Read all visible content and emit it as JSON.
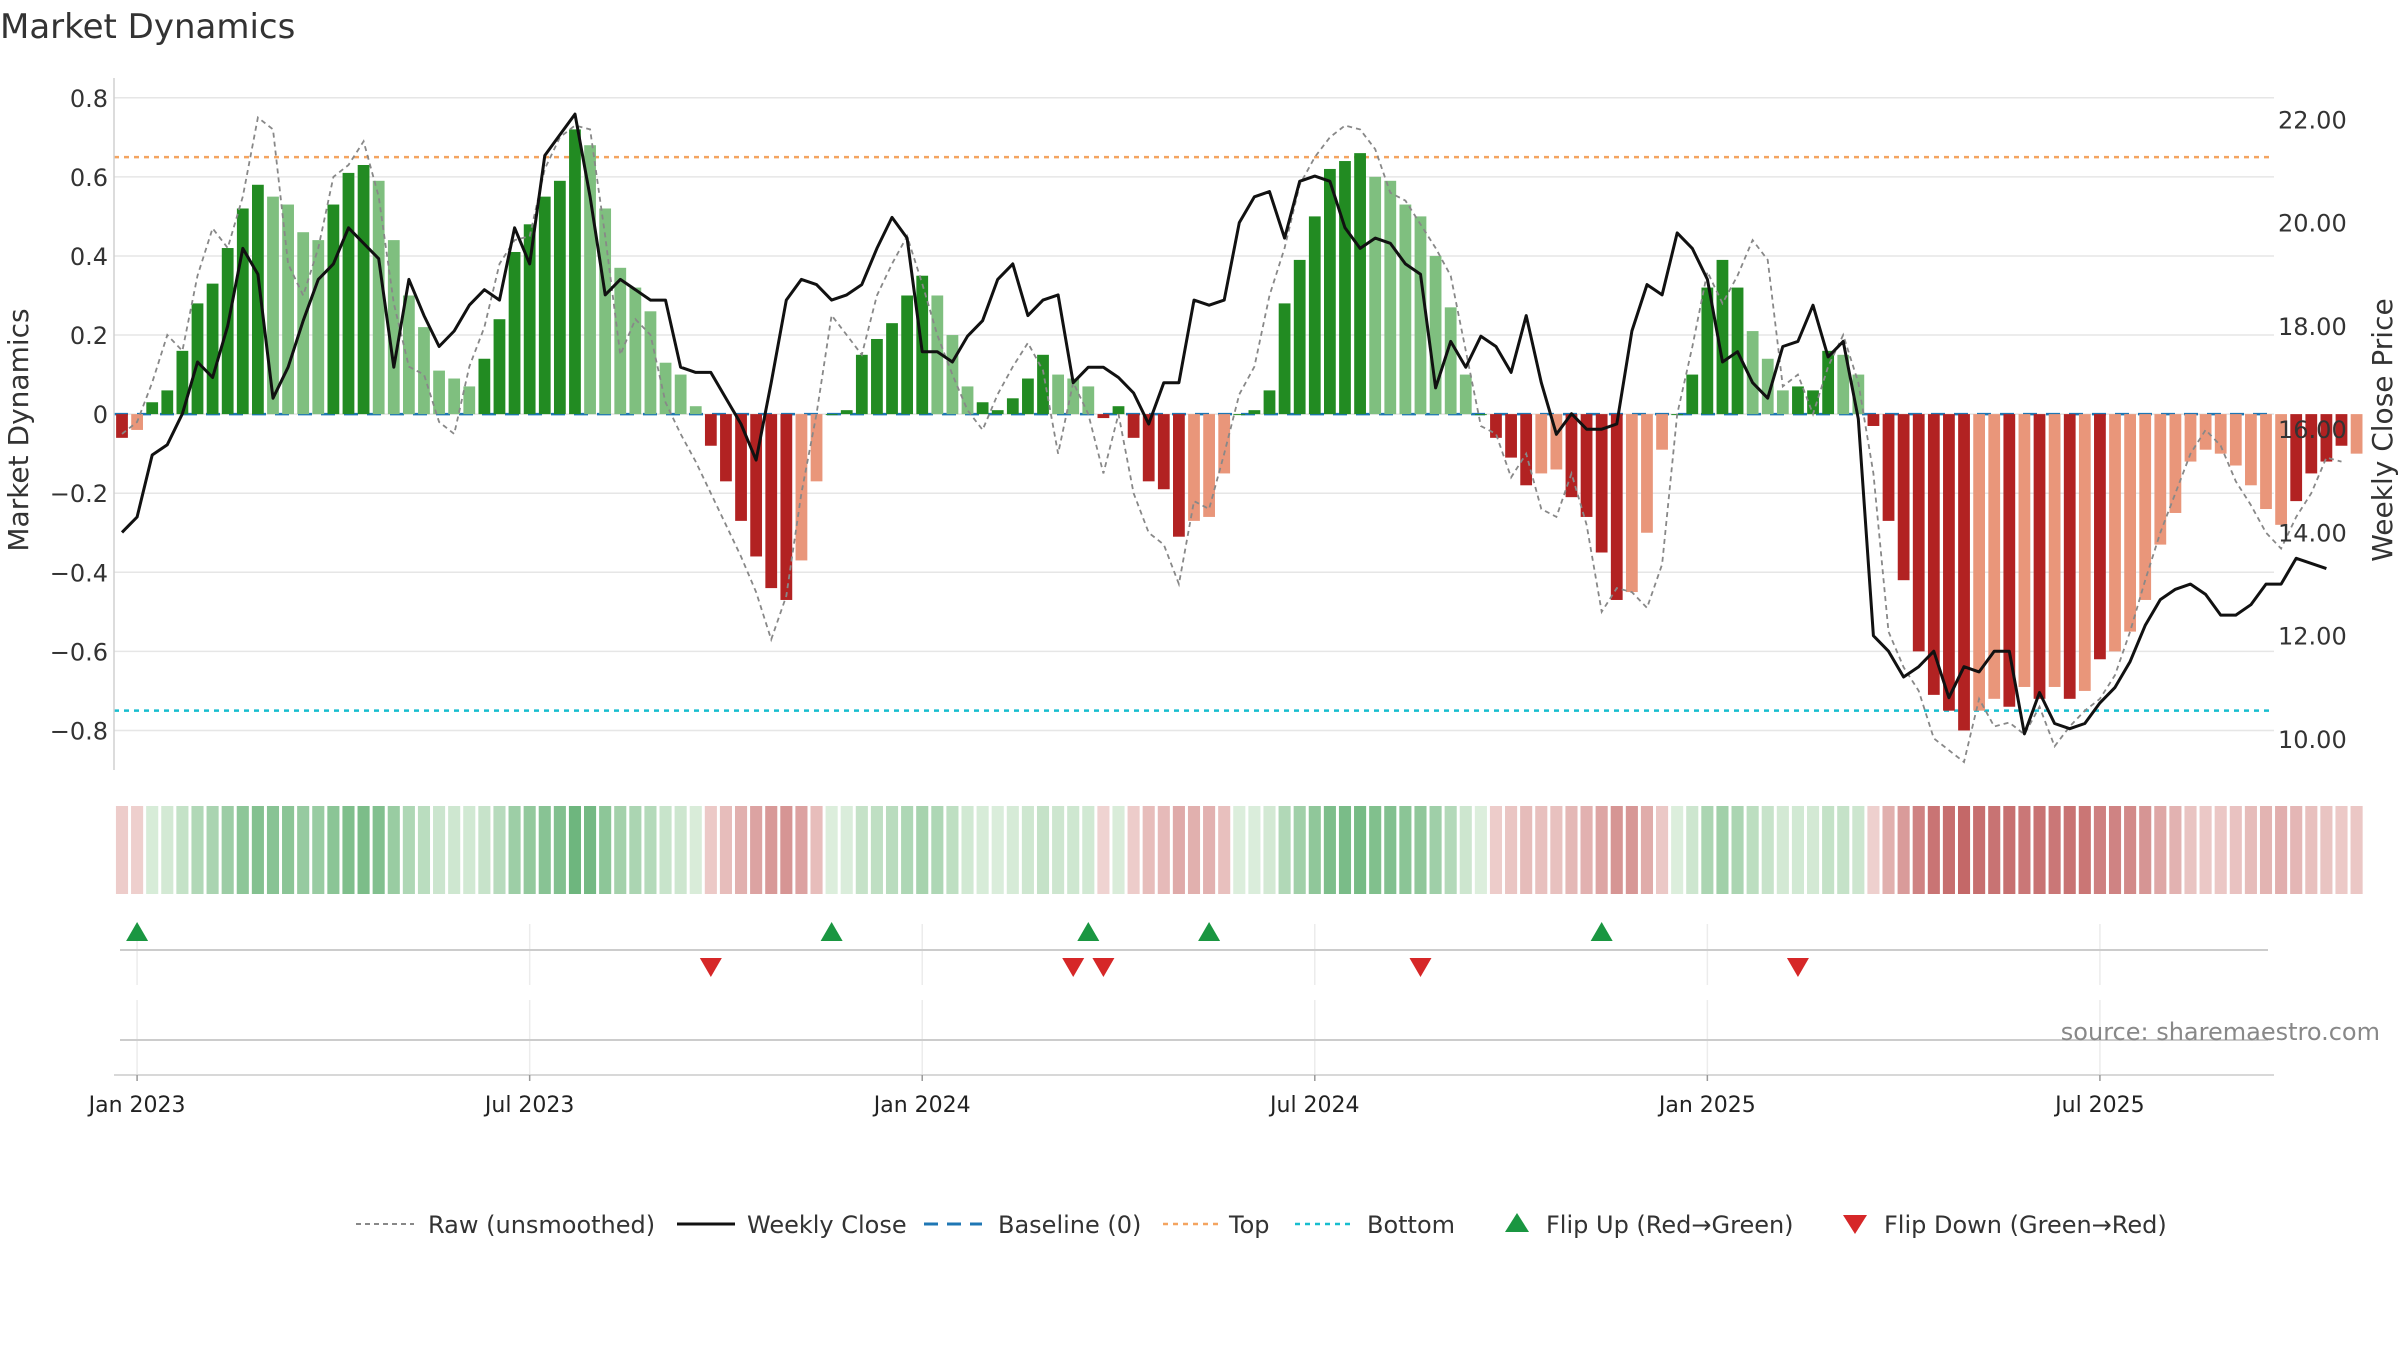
{
  "chart_data": {
    "type": "bar",
    "title": "Market Dynamics",
    "ylabel_left": "Market Dynamics",
    "ylabel_right": "Weekly Close Price",
    "left_ylim": [
      -0.9,
      0.85
    ],
    "right_ylim": [
      9.4,
      22.8
    ],
    "left_yticks": [
      0.8,
      0.6,
      0.4,
      0.2,
      0,
      -0.2,
      -0.4,
      -0.6,
      -0.8
    ],
    "left_yticklabels": [
      "0.8",
      "0.6",
      "0.4",
      "0.2",
      "0",
      "−0.2",
      "−0.4",
      "−0.6",
      "−0.8"
    ],
    "right_yticks": [
      22,
      20,
      18,
      16,
      14,
      12,
      10
    ],
    "right_yticklabels": [
      "22.00",
      "20.00",
      "18.00",
      "16.00",
      "14.00",
      "12.00",
      "10.00"
    ],
    "x_ticks": [
      "Jan 2023",
      "Jul 2023",
      "Jan 2024",
      "Jul 2024",
      "Jan 2025",
      "Jul 2025"
    ],
    "x_tick_weeks": [
      1,
      27,
      53,
      79,
      105,
      131
    ],
    "top_level": 0.65,
    "bottom_level": -0.75,
    "baseline": 0,
    "weeks": 143,
    "bars": [
      -0.06,
      -0.04,
      0.03,
      0.06,
      0.16,
      0.28,
      0.33,
      0.42,
      0.52,
      0.58,
      0.55,
      0.53,
      0.46,
      0.44,
      0.53,
      0.61,
      0.63,
      0.59,
      0.44,
      0.3,
      0.22,
      0.11,
      0.09,
      0.07,
      0.14,
      0.24,
      0.41,
      0.48,
      0.55,
      0.59,
      0.72,
      0.68,
      0.52,
      0.37,
      0.32,
      0.26,
      0.13,
      0.1,
      0.02,
      -0.08,
      -0.17,
      -0.27,
      -0.36,
      -0.44,
      -0.47,
      -0.37,
      -0.17,
      0.0,
      0.01,
      0.15,
      0.19,
      0.23,
      0.3,
      0.35,
      0.3,
      0.2,
      0.07,
      0.03,
      0.01,
      0.04,
      0.09,
      0.15,
      0.1,
      0.09,
      0.07,
      -0.01,
      0.02,
      -0.06,
      -0.17,
      -0.19,
      -0.31,
      -0.27,
      -0.26,
      -0.15,
      0.0,
      0.01,
      0.06,
      0.28,
      0.39,
      0.5,
      0.62,
      0.64,
      0.66,
      0.6,
      0.59,
      0.53,
      0.5,
      0.4,
      0.27,
      0.1,
      0.0,
      -0.06,
      -0.11,
      -0.18,
      -0.15,
      -0.14,
      -0.21,
      -0.26,
      -0.35,
      -0.47,
      -0.45,
      -0.3,
      -0.09,
      0.0,
      0.1,
      0.32,
      0.39,
      0.32,
      0.21,
      0.14,
      0.06,
      0.07,
      0.06,
      0.16,
      0.15,
      0.1,
      -0.03,
      -0.27,
      -0.42,
      -0.6,
      -0.71,
      -0.75,
      -0.8,
      -0.75,
      -0.72,
      -0.74,
      -0.69,
      -0.72,
      -0.69,
      -0.72,
      -0.7,
      -0.62,
      -0.6,
      -0.55,
      -0.47,
      -0.33,
      -0.25,
      -0.12,
      -0.09,
      -0.1,
      -0.13,
      -0.18,
      -0.24,
      -0.28,
      -0.22,
      -0.15,
      -0.12,
      -0.08,
      -0.1
    ],
    "bar_strong": [
      true,
      false,
      true,
      true,
      true,
      true,
      true,
      true,
      true,
      true,
      false,
      false,
      false,
      false,
      true,
      true,
      true,
      false,
      false,
      false,
      false,
      false,
      false,
      false,
      true,
      true,
      true,
      true,
      true,
      true,
      true,
      false,
      false,
      false,
      false,
      false,
      false,
      false,
      false,
      true,
      true,
      true,
      true,
      true,
      true,
      false,
      false,
      true,
      true,
      true,
      true,
      true,
      true,
      true,
      false,
      false,
      false,
      true,
      true,
      true,
      true,
      true,
      false,
      false,
      false,
      true,
      true,
      true,
      true,
      true,
      true,
      false,
      false,
      false,
      true,
      true,
      true,
      true,
      true,
      true,
      true,
      true,
      true,
      false,
      false,
      false,
      false,
      false,
      false,
      false,
      true,
      true,
      true,
      true,
      false,
      false,
      true,
      true,
      true,
      true,
      false,
      false,
      false,
      true,
      true,
      true,
      true,
      true,
      false,
      false,
      false,
      true,
      true,
      true,
      false,
      false,
      true,
      true,
      true,
      true,
      true,
      true,
      true,
      false,
      false,
      true,
      false,
      true,
      false,
      true,
      false,
      true,
      false,
      false,
      false,
      false,
      false,
      false,
      false,
      false,
      false,
      false,
      false,
      false,
      true,
      true,
      true,
      true,
      false,
      false,
      false,
      false,
      true
    ],
    "raw": [
      -0.05,
      -0.02,
      0.08,
      0.2,
      0.16,
      0.35,
      0.47,
      0.42,
      0.55,
      0.75,
      0.72,
      0.38,
      0.3,
      0.42,
      0.6,
      0.63,
      0.69,
      0.55,
      0.28,
      0.12,
      0.1,
      -0.02,
      -0.05,
      0.12,
      0.22,
      0.38,
      0.44,
      0.45,
      0.62,
      0.7,
      0.73,
      0.72,
      0.45,
      0.15,
      0.24,
      0.2,
      0.03,
      -0.05,
      -0.12,
      -0.2,
      -0.28,
      -0.36,
      -0.45,
      -0.57,
      -0.46,
      -0.2,
      0.0,
      0.25,
      0.2,
      0.15,
      0.3,
      0.38,
      0.45,
      0.33,
      0.2,
      0.1,
      0.01,
      -0.04,
      0.05,
      0.12,
      0.18,
      0.11,
      -0.1,
      0.08,
      0.0,
      -0.15,
      0.0,
      -0.2,
      -0.3,
      -0.33,
      -0.43,
      -0.22,
      -0.24,
      -0.1,
      0.05,
      0.12,
      0.3,
      0.42,
      0.58,
      0.65,
      0.7,
      0.73,
      0.72,
      0.67,
      0.56,
      0.54,
      0.48,
      0.42,
      0.35,
      0.16,
      -0.03,
      -0.05,
      -0.16,
      -0.1,
      -0.24,
      -0.26,
      -0.15,
      -0.28,
      -0.5,
      -0.44,
      -0.45,
      -0.49,
      -0.38,
      0.0,
      0.17,
      0.36,
      0.28,
      0.35,
      0.44,
      0.39,
      0.07,
      0.1,
      0.0,
      0.12,
      0.2,
      0.08,
      -0.15,
      -0.55,
      -0.64,
      -0.7,
      -0.82,
      -0.85,
      -0.88,
      -0.72,
      -0.79,
      -0.78,
      -0.81,
      -0.74,
      -0.84,
      -0.79,
      -0.75,
      -0.72,
      -0.66,
      -0.55,
      -0.42,
      -0.3,
      -0.2,
      -0.1,
      -0.04,
      -0.08,
      -0.17,
      -0.23,
      -0.3,
      -0.34,
      -0.26,
      -0.2,
      -0.11,
      -0.12
    ],
    "close": [
      14.0,
      14.3,
      15.5,
      15.7,
      16.3,
      17.3,
      17.0,
      18.0,
      19.5,
      19.0,
      16.6,
      17.2,
      18.1,
      18.9,
      19.2,
      19.9,
      19.6,
      19.3,
      17.2,
      18.9,
      18.2,
      17.6,
      17.9,
      18.4,
      18.7,
      18.5,
      19.9,
      19.2,
      21.3,
      21.7,
      22.1,
      20.5,
      18.6,
      18.9,
      18.7,
      18.5,
      18.5,
      17.2,
      17.1,
      17.1,
      16.6,
      16.1,
      15.4,
      16.9,
      18.5,
      18.9,
      18.8,
      18.5,
      18.6,
      18.8,
      19.5,
      20.1,
      19.7,
      17.5,
      17.5,
      17.3,
      17.8,
      18.1,
      18.9,
      19.2,
      18.2,
      18.5,
      18.6,
      16.9,
      17.2,
      17.2,
      17.0,
      16.7,
      16.1,
      16.9,
      16.9,
      18.5,
      18.4,
      18.5,
      20.0,
      20.5,
      20.6,
      19.7,
      20.8,
      20.9,
      20.8,
      19.9,
      19.5,
      19.7,
      19.6,
      19.2,
      19.0,
      16.8,
      17.7,
      17.2,
      17.8,
      17.6,
      17.1,
      18.2,
      16.9,
      15.9,
      16.3,
      16.0,
      16.0,
      16.1,
      17.9,
      18.8,
      18.6,
      19.8,
      19.5,
      18.9,
      17.3,
      17.5,
      16.9,
      16.6,
      17.6,
      17.7,
      18.4,
      17.4,
      17.7,
      16.2,
      12.0,
      11.7,
      11.2,
      11.4,
      11.7,
      10.8,
      11.4,
      11.3,
      11.7,
      11.7,
      10.1,
      10.9,
      10.3,
      10.2,
      10.3,
      10.7,
      11.0,
      11.5,
      12.2,
      12.7,
      12.9,
      13.0,
      12.8,
      12.4,
      12.4,
      12.6,
      13.0,
      13.0,
      13.5,
      13.4,
      13.3
    ],
    "flip_up_weeks": [
      1,
      47,
      64,
      72,
      98
    ],
    "flip_down_weeks": [
      39,
      63,
      65,
      86,
      111
    ],
    "legend": [
      {
        "label": "Raw (unsmoothed)",
        "style": "dashed-gray"
      },
      {
        "label": "Weekly Close",
        "style": "solid-black"
      },
      {
        "label": "Baseline (0)",
        "style": "dashed-blue"
      },
      {
        "label": "Top",
        "style": "dotted-orange"
      },
      {
        "label": "Bottom",
        "style": "dotted-cyan"
      },
      {
        "label": "Flip Up (Red→Green)",
        "style": "triangle-up-green"
      },
      {
        "label": "Flip Down (Green→Red)",
        "style": "triangle-down-red"
      }
    ],
    "source": "source: sharemaestro.com",
    "colors": {
      "pos_strong": "#228b22",
      "pos_weak": "#7fbf7f",
      "neg_strong": "#b22222",
      "neg_weak": "#e9967a",
      "raw": "#888888",
      "close": "#111111",
      "baseline": "#1f77b4",
      "top": "#f4a460",
      "bottom": "#17becf",
      "flip_up": "#1a9641",
      "flip_down": "#d62728",
      "grid": "#e6e6e6"
    }
  }
}
